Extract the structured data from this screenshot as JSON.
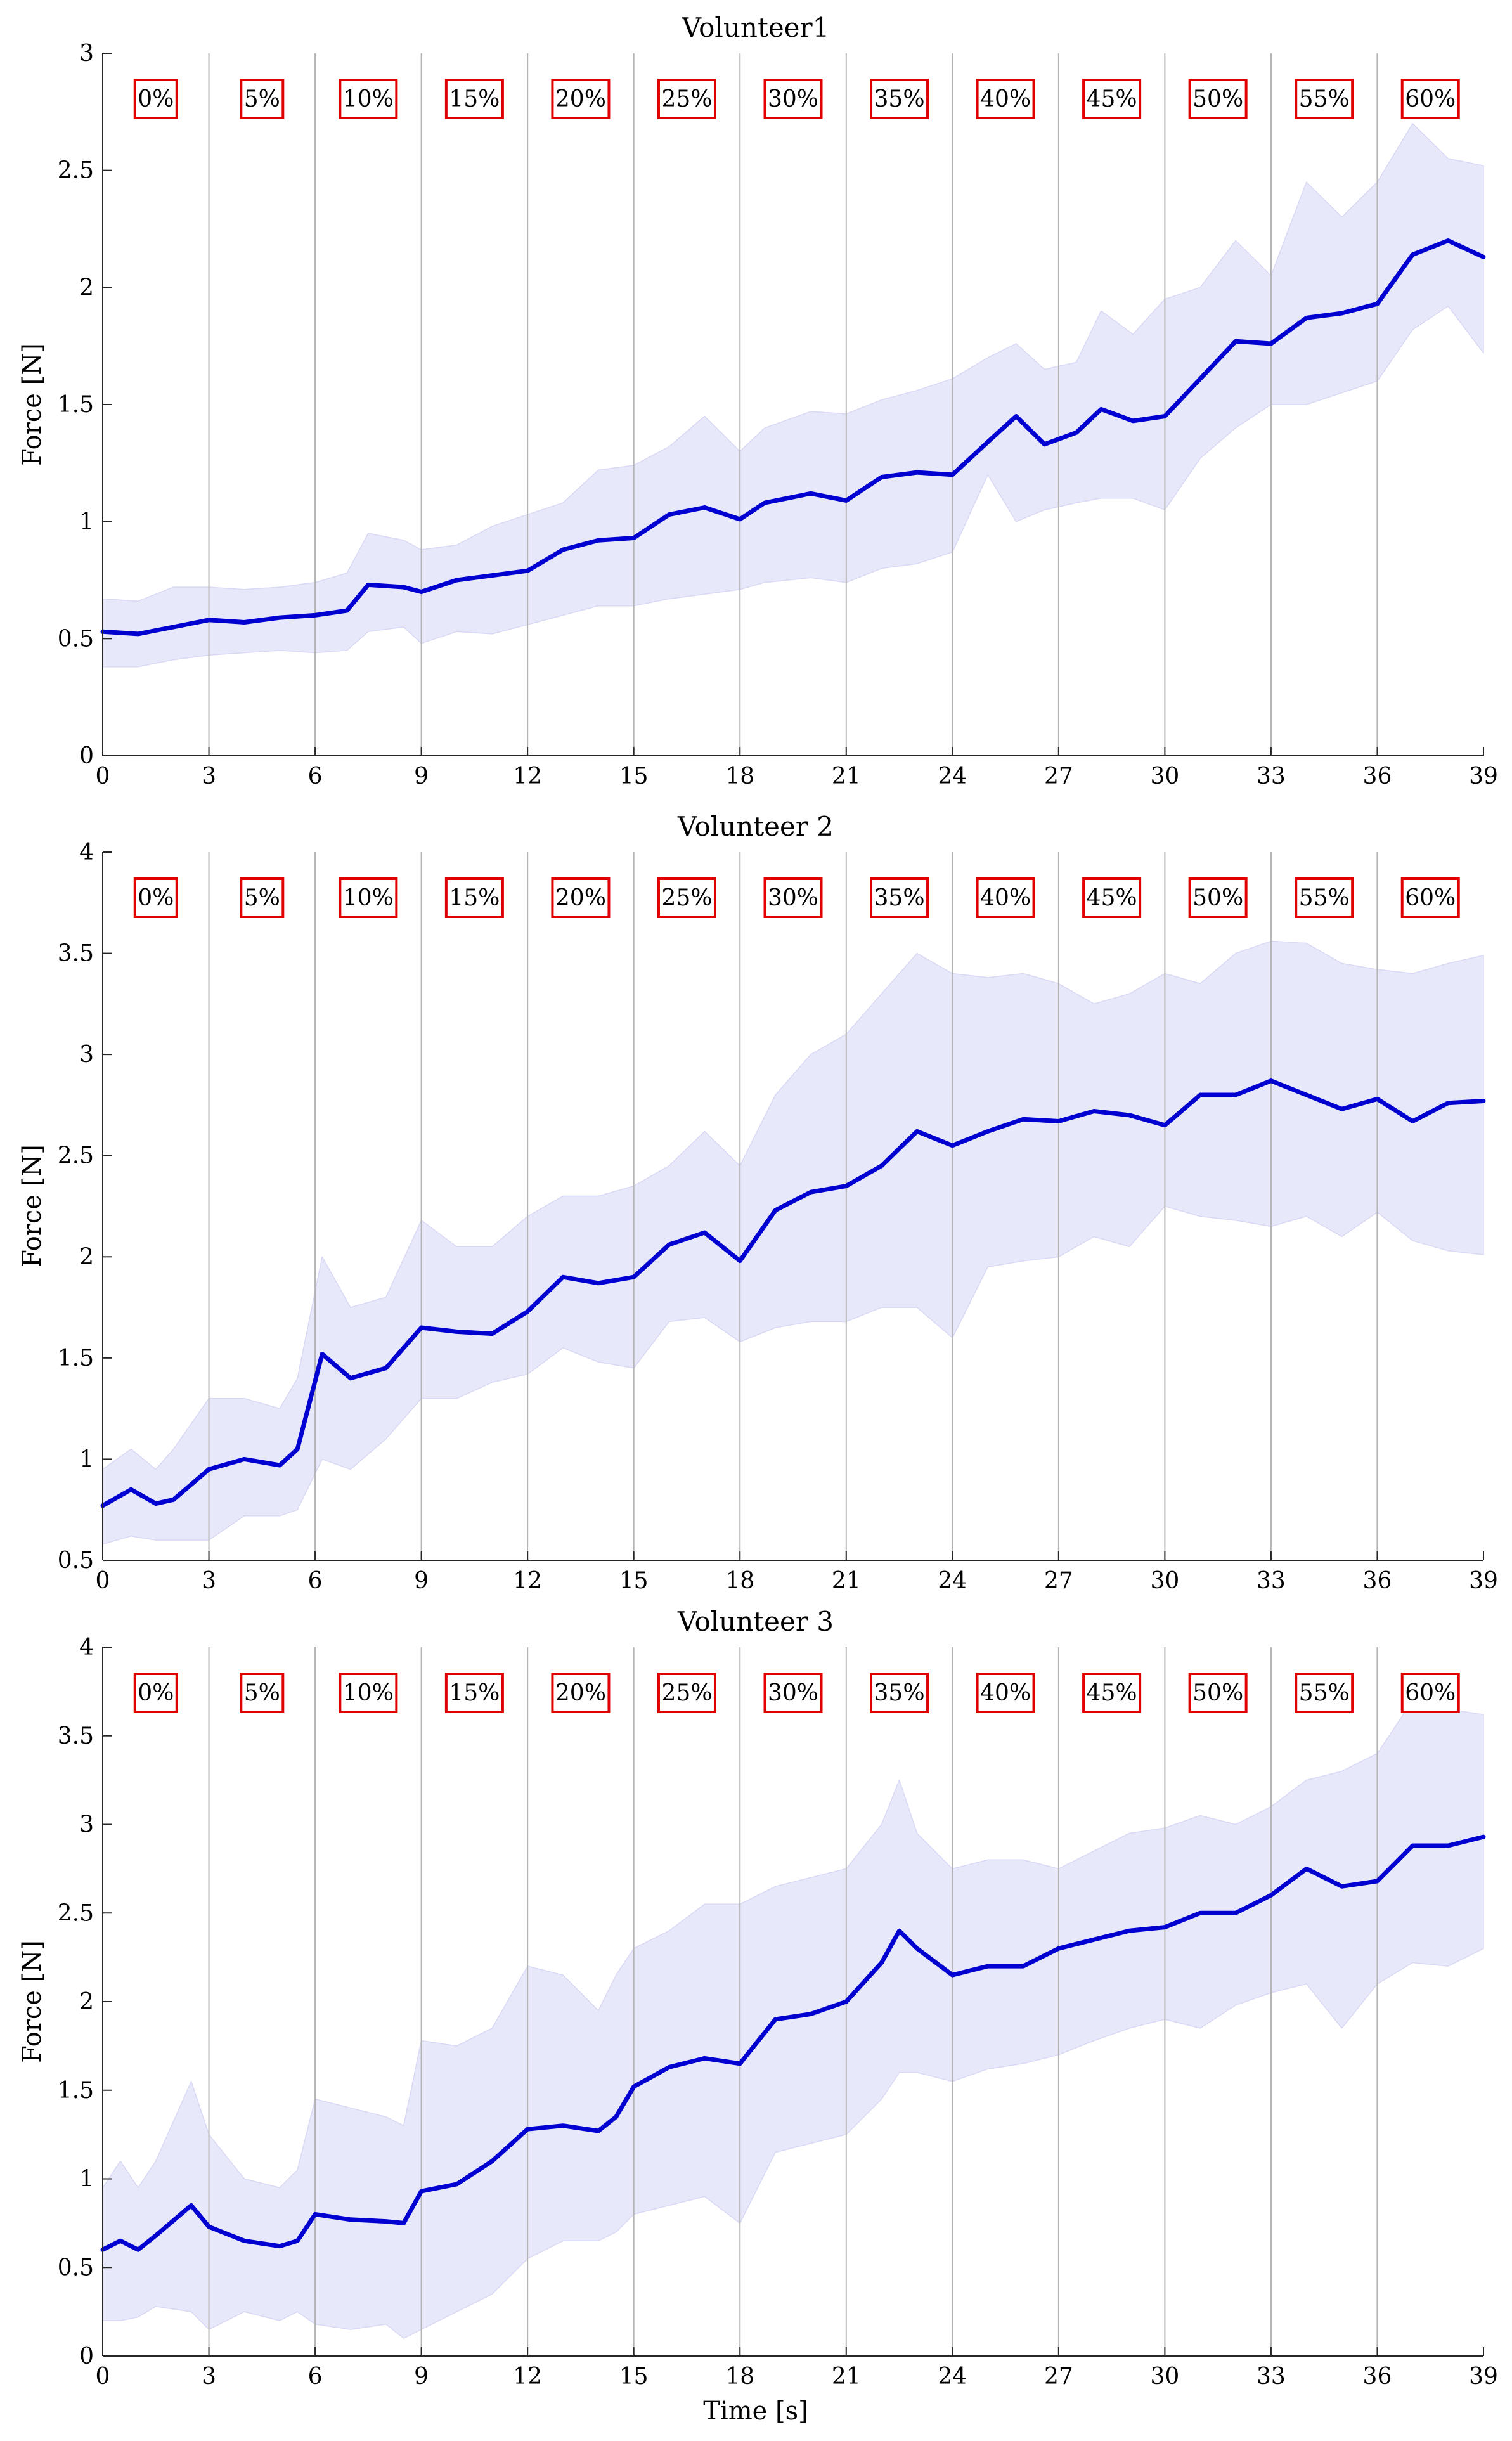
{
  "chart_data": [
    {
      "type": "line",
      "title": "Volunteer1",
      "xlabel": "",
      "ylabel": "Force [N]",
      "xlim": [
        0,
        39
      ],
      "ylim": [
        0,
        3
      ],
      "xticks": [
        0,
        3,
        6,
        9,
        12,
        15,
        18,
        21,
        24,
        27,
        30,
        33,
        36,
        39
      ],
      "yticks": [
        0,
        0.5,
        1,
        1.5,
        2,
        2.5,
        3
      ],
      "vlines": [
        3,
        6,
        9,
        12,
        15,
        18,
        21,
        24,
        27,
        30,
        33,
        36
      ],
      "phase_labels": [
        "0%",
        "5%",
        "10%",
        "15%",
        "20%",
        "25%",
        "30%",
        "35%",
        "40%",
        "45%",
        "50%",
        "55%",
        "60%"
      ],
      "x": [
        0,
        1,
        2,
        3,
        4,
        5,
        6,
        6.9,
        7.5,
        8.5,
        9,
        10,
        11,
        12,
        13,
        14,
        15,
        16,
        17,
        18,
        18.7,
        20,
        21,
        22,
        23,
        24,
        25,
        25.8,
        26.6,
        27.5,
        28.2,
        29.1,
        30,
        31,
        32,
        33,
        34,
        35,
        36,
        37,
        38,
        39
      ],
      "series": [
        {
          "name": "Mean",
          "values": [
            0.53,
            0.52,
            0.55,
            0.58,
            0.57,
            0.59,
            0.6,
            0.62,
            0.73,
            0.72,
            0.7,
            0.75,
            0.77,
            0.79,
            0.88,
            0.92,
            0.93,
            1.03,
            1.06,
            1.01,
            1.08,
            1.12,
            1.09,
            1.19,
            1.21,
            1.2,
            1.34,
            1.45,
            1.33,
            1.38,
            1.48,
            1.43,
            1.45,
            1.61,
            1.77,
            1.76,
            1.87,
            1.89,
            1.93,
            2.14,
            2.2,
            2.13
          ]
        },
        {
          "name": "Upper",
          "values": [
            0.67,
            0.66,
            0.72,
            0.72,
            0.71,
            0.72,
            0.74,
            0.78,
            0.95,
            0.92,
            0.88,
            0.9,
            0.98,
            1.03,
            1.08,
            1.22,
            1.24,
            1.32,
            1.45,
            1.3,
            1.4,
            1.47,
            1.46,
            1.52,
            1.56,
            1.61,
            1.7,
            1.76,
            1.65,
            1.68,
            1.9,
            1.8,
            1.95,
            2.0,
            2.2,
            2.05,
            2.45,
            2.3,
            2.45,
            2.7,
            2.55,
            2.52
          ]
        },
        {
          "name": "Lower",
          "values": [
            0.38,
            0.38,
            0.41,
            0.43,
            0.44,
            0.45,
            0.44,
            0.45,
            0.53,
            0.55,
            0.48,
            0.53,
            0.52,
            0.56,
            0.6,
            0.64,
            0.64,
            0.67,
            0.69,
            0.71,
            0.74,
            0.76,
            0.74,
            0.8,
            0.82,
            0.87,
            1.2,
            1.0,
            1.05,
            1.08,
            1.1,
            1.1,
            1.05,
            1.27,
            1.4,
            1.5,
            1.5,
            1.55,
            1.6,
            1.82,
            1.92,
            1.72
          ]
        }
      ]
    },
    {
      "type": "line",
      "title": "Volunteer 2",
      "xlabel": "",
      "ylabel": "Force [N]",
      "xlim": [
        0,
        39
      ],
      "ylim": [
        0.5,
        4
      ],
      "xticks": [
        0,
        3,
        6,
        9,
        12,
        15,
        18,
        21,
        24,
        27,
        30,
        33,
        36,
        39
      ],
      "yticks": [
        0.5,
        1,
        1.5,
        2,
        2.5,
        3,
        3.5,
        4
      ],
      "vlines": [
        3,
        6,
        9,
        12,
        15,
        18,
        21,
        24,
        27,
        30,
        33,
        36
      ],
      "phase_labels": [
        "0%",
        "5%",
        "10%",
        "15%",
        "20%",
        "25%",
        "30%",
        "35%",
        "40%",
        "45%",
        "50%",
        "55%",
        "60%"
      ],
      "x": [
        0,
        0.8,
        1.5,
        2,
        3,
        4,
        5,
        5.5,
        6.2,
        7,
        8,
        9,
        10,
        11,
        12,
        13,
        14,
        15,
        16,
        17,
        18,
        19,
        20,
        21,
        22,
        23,
        24,
        25,
        26,
        27,
        28,
        29,
        30,
        31,
        32,
        33,
        34,
        35,
        36,
        37,
        38,
        39
      ],
      "series": [
        {
          "name": "Mean",
          "values": [
            0.77,
            0.85,
            0.78,
            0.8,
            0.95,
            1.0,
            0.97,
            1.05,
            1.52,
            1.4,
            1.45,
            1.65,
            1.63,
            1.62,
            1.73,
            1.9,
            1.87,
            1.9,
            2.06,
            2.12,
            1.98,
            2.23,
            2.32,
            2.35,
            2.45,
            2.62,
            2.55,
            2.62,
            2.68,
            2.67,
            2.72,
            2.7,
            2.65,
            2.8,
            2.8,
            2.87,
            2.8,
            2.73,
            2.78,
            2.67,
            2.76,
            2.77
          ]
        },
        {
          "name": "Upper",
          "values": [
            0.95,
            1.05,
            0.95,
            1.05,
            1.3,
            1.3,
            1.25,
            1.4,
            2.0,
            1.75,
            1.8,
            2.18,
            2.05,
            2.05,
            2.2,
            2.3,
            2.3,
            2.35,
            2.45,
            2.62,
            2.45,
            2.8,
            3.0,
            3.1,
            3.3,
            3.5,
            3.4,
            3.38,
            3.4,
            3.35,
            3.25,
            3.3,
            3.4,
            3.35,
            3.5,
            3.56,
            3.55,
            3.45,
            3.42,
            3.4,
            3.45,
            3.49
          ]
        },
        {
          "name": "Lower",
          "values": [
            0.58,
            0.62,
            0.6,
            0.6,
            0.6,
            0.72,
            0.72,
            0.75,
            1.0,
            0.95,
            1.1,
            1.3,
            1.3,
            1.38,
            1.42,
            1.55,
            1.48,
            1.45,
            1.68,
            1.7,
            1.58,
            1.65,
            1.68,
            1.68,
            1.75,
            1.75,
            1.6,
            1.95,
            1.98,
            2.0,
            2.1,
            2.05,
            2.25,
            2.2,
            2.18,
            2.15,
            2.2,
            2.1,
            2.22,
            2.08,
            2.03,
            2.01
          ]
        }
      ]
    },
    {
      "type": "line",
      "title": "Volunteer 3",
      "xlabel": "Time [s]",
      "ylabel": "Force [N]",
      "xlim": [
        0,
        39
      ],
      "ylim": [
        0,
        4
      ],
      "xticks": [
        0,
        3,
        6,
        9,
        12,
        15,
        18,
        21,
        24,
        27,
        30,
        33,
        36,
        39
      ],
      "yticks": [
        0,
        0.5,
        1,
        1.5,
        2,
        2.5,
        3,
        3.5,
        4
      ],
      "vlines": [
        3,
        6,
        9,
        12,
        15,
        18,
        21,
        24,
        27,
        30,
        33,
        36
      ],
      "phase_labels": [
        "0%",
        "5%",
        "10%",
        "15%",
        "20%",
        "25%",
        "30%",
        "35%",
        "40%",
        "45%",
        "50%",
        "55%",
        "60%"
      ],
      "x": [
        0,
        0.5,
        1,
        1.5,
        2.5,
        3,
        4,
        5,
        5.5,
        6,
        7,
        8,
        8.5,
        9,
        10,
        11,
        12,
        13,
        14,
        14.5,
        15,
        16,
        17,
        18,
        19,
        20,
        21,
        22,
        22.5,
        23,
        24,
        25,
        26,
        27,
        28,
        29,
        30,
        31,
        32,
        33,
        34,
        35,
        36,
        37,
        38,
        39
      ],
      "series": [
        {
          "name": "Mean",
          "values": [
            0.6,
            0.65,
            0.6,
            0.68,
            0.85,
            0.73,
            0.65,
            0.62,
            0.65,
            0.8,
            0.77,
            0.76,
            0.75,
            0.93,
            0.97,
            1.1,
            1.28,
            1.3,
            1.27,
            1.35,
            1.52,
            1.63,
            1.68,
            1.65,
            1.9,
            1.93,
            2.0,
            2.22,
            2.4,
            2.3,
            2.15,
            2.2,
            2.2,
            2.3,
            2.35,
            2.4,
            2.42,
            2.5,
            2.5,
            2.6,
            2.75,
            2.65,
            2.68,
            2.88,
            2.88,
            2.93
          ]
        },
        {
          "name": "Upper",
          "values": [
            0.95,
            1.1,
            0.95,
            1.1,
            1.55,
            1.25,
            1.0,
            0.95,
            1.05,
            1.45,
            1.4,
            1.35,
            1.3,
            1.78,
            1.75,
            1.85,
            2.2,
            2.15,
            1.95,
            2.15,
            2.3,
            2.4,
            2.55,
            2.55,
            2.65,
            2.7,
            2.75,
            3.0,
            3.25,
            2.95,
            2.75,
            2.8,
            2.8,
            2.75,
            2.85,
            2.95,
            2.98,
            3.05,
            3.0,
            3.1,
            3.25,
            3.3,
            3.4,
            3.7,
            3.65,
            3.62
          ]
        },
        {
          "name": "Lower",
          "values": [
            0.2,
            0.2,
            0.22,
            0.28,
            0.25,
            0.15,
            0.25,
            0.2,
            0.25,
            0.18,
            0.15,
            0.18,
            0.1,
            0.15,
            0.25,
            0.35,
            0.55,
            0.65,
            0.65,
            0.7,
            0.8,
            0.85,
            0.9,
            0.75,
            1.15,
            1.2,
            1.25,
            1.45,
            1.6,
            1.6,
            1.55,
            1.62,
            1.65,
            1.7,
            1.78,
            1.85,
            1.9,
            1.85,
            1.98,
            2.05,
            2.1,
            1.85,
            2.1,
            2.22,
            2.2,
            2.3
          ]
        }
      ]
    }
  ],
  "colors": {
    "mean_line": "#0000d0",
    "band_fill": "#e8e8fb",
    "band_edge": "#d8d8f4",
    "grid_vline": "#b4b4b4",
    "phase_box": "#e00000",
    "axis": "#262626"
  }
}
